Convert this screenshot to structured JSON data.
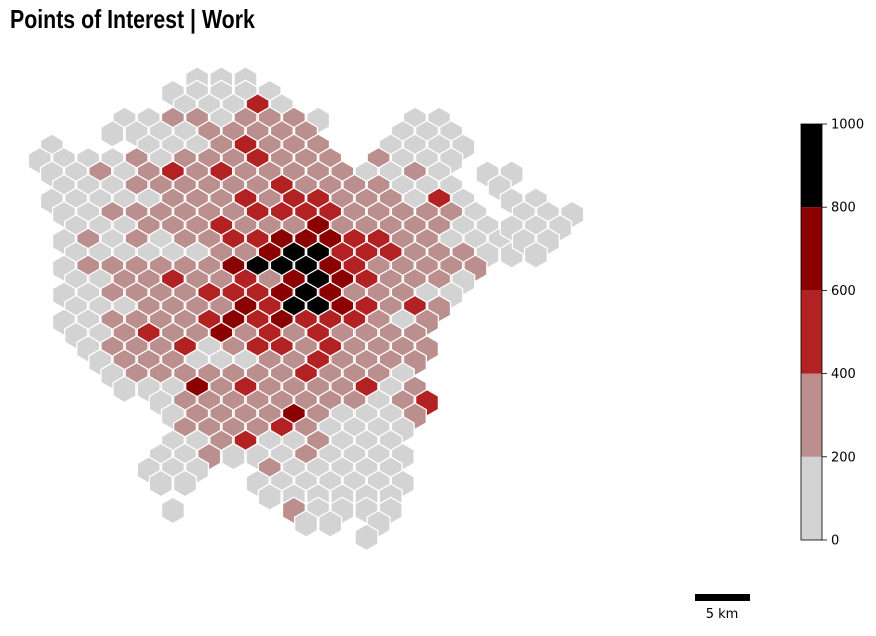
{
  "title": "Points of Interest | Work",
  "colorbar": {
    "ticks": [
      "0",
      "200",
      "400",
      "600",
      "800",
      "1000"
    ],
    "min": 0,
    "max": 1000,
    "bins": [
      {
        "from": 0,
        "to": 200,
        "color": "#d3d3d3"
      },
      {
        "from": 200,
        "to": 400,
        "color": "#bc8f8f"
      },
      {
        "from": 400,
        "to": 600,
        "color": "#b22222"
      },
      {
        "from": 600,
        "to": 800,
        "color": "#8b0000"
      },
      {
        "from": 800,
        "to": 1000,
        "color": "#000000"
      }
    ]
  },
  "scale_bar": {
    "label": "5 km"
  },
  "hex_rows": [
    {
      "q": [
        11,
        13,
        15
      ],
      "c": "000"
    },
    {
      "q": [
        9,
        11,
        13,
        15,
        17
      ],
      "c": "00000"
    },
    {
      "q": [
        10,
        12,
        14,
        16,
        18
      ],
      "c": "00020"
    },
    {
      "q": [
        5,
        7,
        9,
        11,
        13,
        15,
        17,
        19,
        21,
        29,
        31
      ],
      "c": "00110111000"
    },
    {
      "q": [
        4,
        6,
        8,
        10,
        12,
        14,
        16,
        18,
        20,
        28,
        30,
        32
      ],
      "c": "000011111000"
    },
    {
      "q": [
        -1,
        7,
        9,
        11,
        13,
        15,
        17,
        19,
        21,
        27,
        29,
        31,
        33
      ],
      "c": "0000121110000"
    },
    {
      "q": [
        -2,
        0,
        2,
        4,
        6,
        8,
        10,
        12,
        14,
        16,
        18,
        20,
        22,
        26,
        28,
        30,
        32
      ],
      "c": "00001011121111000"
    },
    {
      "q": [
        -1,
        1,
        3,
        5,
        7,
        9,
        11,
        13,
        15,
        17,
        19,
        21,
        23,
        25,
        27,
        29,
        31
      ],
      "c": "00101212111110010"
    },
    {
      "q": [
        0,
        2,
        4,
        6,
        8,
        10,
        12,
        14,
        16,
        18,
        20,
        22,
        24,
        26,
        28,
        30,
        32
      ],
      "c": "00011111121111000"
    },
    {
      "q": [
        -1,
        1,
        3,
        5,
        7,
        9,
        11,
        13,
        15,
        17,
        19,
        21,
        23,
        25,
        27,
        29,
        31,
        33
      ],
      "c": "000001112122111020"
    },
    {
      "q": [
        0,
        2,
        4,
        6,
        8,
        10,
        12,
        14,
        16,
        18,
        20,
        22,
        24,
        26,
        28,
        30,
        32,
        34
      ],
      "c": "001111112222111110"
    },
    {
      "q": [
        1,
        3,
        5,
        7,
        9,
        11,
        13,
        15,
        17,
        19,
        21,
        23,
        25,
        27,
        29,
        31,
        33,
        35
      ],
      "c": "000111211131111100"
    },
    {
      "q": [
        0,
        2,
        4,
        6,
        8,
        10,
        12,
        14,
        16,
        18,
        20,
        22,
        24,
        26,
        28,
        30,
        32,
        34,
        36
      ],
      "c": "0101011223332211000"
    },
    {
      "q": [
        1,
        3,
        5,
        7,
        9,
        11,
        13,
        15,
        17,
        19,
        21,
        23,
        25,
        27,
        29,
        31,
        33,
        35,
        37
      ],
      "c": "0000001134422211100"
    },
    {
      "q": [
        0,
        2,
        4,
        6,
        8,
        10,
        12,
        14,
        16,
        18,
        20,
        22,
        24,
        26,
        28,
        30,
        32,
        34
      ],
      "c": "011111134443211111"
    },
    {
      "q": [
        1,
        3,
        5,
        7,
        9,
        11,
        13,
        15,
        17,
        19,
        21,
        23,
        25,
        27,
        29,
        31,
        33
      ],
      "c": "00112112134321110"
    },
    {
      "q": [
        0,
        2,
        4,
        6,
        8,
        10,
        12,
        14,
        16,
        18,
        20,
        22,
        24,
        26,
        28,
        30,
        32
      ],
      "c": "00111122234311100"
    },
    {
      "q": [
        1,
        3,
        5,
        7,
        9,
        11,
        13,
        15,
        17,
        19,
        21,
        23,
        25,
        27,
        29,
        31
      ],
      "c": "0001111324432121"
    },
    {
      "q": [
        0,
        2,
        4,
        6,
        8,
        10,
        12,
        14,
        16,
        18,
        20,
        22,
        24,
        26,
        28,
        30
      ],
      "c": "0011112323222101"
    },
    {
      "q": [
        1,
        3,
        5,
        7,
        9,
        11,
        13,
        15,
        17,
        19,
        21,
        23,
        25,
        27,
        29
      ],
      "c": "001211312121111"
    },
    {
      "q": [
        2,
        4,
        6,
        8,
        10,
        12,
        14,
        16,
        18,
        20,
        22,
        24,
        26,
        28,
        30
      ],
      "c": "011120122121111"
    },
    {
      "q": [
        3,
        5,
        7,
        9,
        11,
        13,
        15,
        17,
        19,
        21,
        23,
        25,
        27,
        29
      ],
      "c": "01110001121111"
    },
    {
      "q": [
        4,
        6,
        8,
        10,
        12,
        14,
        16,
        18,
        20,
        22,
        24,
        26,
        28
      ],
      "c": "0111111121110"
    },
    {
      "q": [
        5,
        7,
        9,
        11,
        13,
        15,
        17,
        19,
        21,
        23,
        25,
        27,
        29
      ],
      "c": "0003121111201"
    },
    {
      "q": [
        8,
        10,
        12,
        14,
        16,
        18,
        20,
        22,
        24,
        26,
        28,
        30
      ],
      "c": "011111111012"
    },
    {
      "q": [
        9,
        11,
        13,
        15,
        17,
        19,
        21,
        23,
        25,
        27,
        29
      ],
      "c": "01111310001"
    },
    {
      "q": [
        10,
        12,
        14,
        16,
        18,
        20,
        22,
        24,
        26,
        28
      ],
      "c": "1111210000"
    },
    {
      "q": [
        9,
        11,
        13,
        15,
        17,
        19,
        21,
        23,
        25,
        27
      ],
      "c": "0012001000"
    },
    {
      "q": [
        8,
        10,
        12,
        14,
        16,
        18,
        20,
        22,
        24,
        26,
        28
      ],
      "c": "00100010000"
    },
    {
      "q": [
        7,
        9,
        11,
        17,
        19,
        21,
        23,
        25,
        27
      ],
      "c": "000100000"
    },
    {
      "q": [
        8,
        10,
        16,
        18,
        20,
        22,
        24,
        26,
        28
      ],
      "c": "000000000"
    },
    {
      "q": [
        17,
        19,
        21,
        23,
        25,
        27
      ],
      "c": "000000"
    },
    {
      "q": [
        9,
        19,
        21,
        23,
        25,
        27
      ],
      "c": "010000"
    },
    {
      "q": [
        20,
        22,
        26
      ],
      "c": "000"
    },
    {
      "q": [
        25
      ],
      "c": "0"
    }
  ],
  "hex_rows_extra": [
    {
      "row": 7,
      "q": [
        35,
        37
      ],
      "c": "00"
    },
    {
      "row": 8,
      "q": [
        36
      ],
      "c": "0"
    },
    {
      "row": 9,
      "q": [
        37,
        39
      ],
      "c": "00"
    },
    {
      "row": 10,
      "q": [
        38,
        40,
        42
      ],
      "c": "000"
    },
    {
      "row": 11,
      "q": [
        37,
        39,
        41
      ],
      "c": "000"
    },
    {
      "row": 12,
      "q": [
        38,
        40
      ],
      "c": "00"
    },
    {
      "row": 13,
      "q": [
        39
      ],
      "c": "0"
    }
  ]
}
